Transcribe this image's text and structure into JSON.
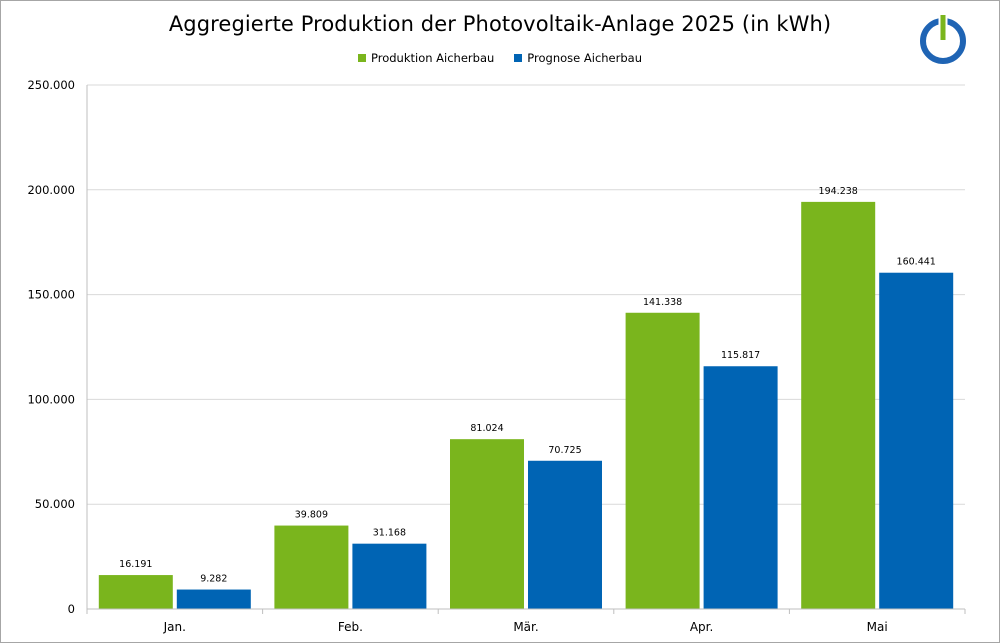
{
  "chart_data": {
    "type": "bar",
    "title": "Aggregierte Produktion der Photovoltaik-Anlage 2025 (in kWh)",
    "categories": [
      "Jan.",
      "Feb.",
      "Mär.",
      "Apr.",
      "Mai"
    ],
    "series": [
      {
        "name": "Produktion Aicherbau",
        "color": "#7ab51d",
        "values": [
          16191,
          39809,
          81024,
          141338,
          194238
        ],
        "labels": [
          "16.191",
          "39.809",
          "81.024",
          "141.338",
          "194.238"
        ]
      },
      {
        "name": "Prognose Aicherbau",
        "color": "#0064b4",
        "values": [
          9282,
          31168,
          70725,
          115817,
          160441
        ],
        "labels": [
          "9.282",
          "31.168",
          "70.725",
          "115.817",
          "160.441"
        ]
      }
    ],
    "ylim": [
      0,
      250000
    ],
    "yticks": [
      0,
      50000,
      100000,
      150000,
      200000,
      250000
    ],
    "ytick_labels": [
      "0",
      "50.000",
      "100.000",
      "150.000",
      "200.000",
      "250.000"
    ],
    "xlabel": "",
    "ylabel": "",
    "grid": true,
    "legend_position": "top-center"
  },
  "logo": {
    "name": "power-button-logo",
    "ring_color": "#1f64b4",
    "bar_color": "#7ab51d"
  }
}
